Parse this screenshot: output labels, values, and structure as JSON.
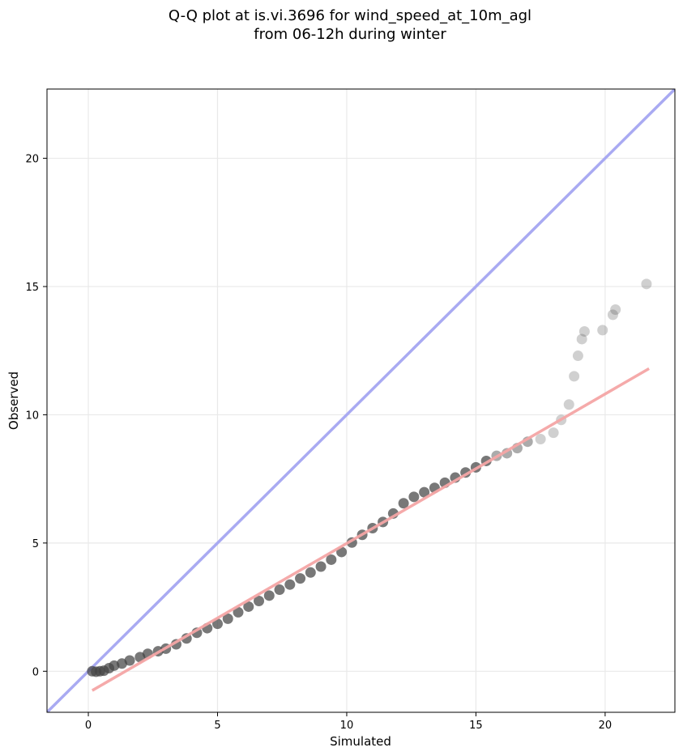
{
  "chart_data": {
    "type": "scatter",
    "title": "Q-Q plot at is.vi.3696 for wind_speed_at_10m_agl",
    "subtitle": "from 06-12h during winter",
    "xlabel": "Simulated",
    "ylabel": "Observed",
    "xlim": [
      -1.6,
      22.7
    ],
    "ylim": [
      -1.6,
      22.7
    ],
    "xticks": [
      0,
      5,
      10,
      15,
      20
    ],
    "yticks": [
      0,
      5,
      10,
      15,
      20
    ],
    "grid": true,
    "reference_line": {
      "from": [
        -1.6,
        -1.6
      ],
      "to": [
        22.7,
        22.7
      ],
      "color": "#a9aaf2"
    },
    "fit_line": {
      "from": [
        0.15,
        -0.75
      ],
      "to": [
        21.7,
        11.8
      ],
      "color": "#f4a5a5"
    },
    "point_color": "#444444",
    "quantiles": [
      [
        0.15,
        0.0
      ],
      [
        0.3,
        -0.02
      ],
      [
        0.45,
        0.0
      ],
      [
        0.6,
        0.02
      ],
      [
        0.8,
        0.12
      ],
      [
        1.0,
        0.22
      ],
      [
        1.3,
        0.3
      ],
      [
        1.6,
        0.42
      ],
      [
        2.0,
        0.55
      ],
      [
        2.3,
        0.68
      ],
      [
        2.7,
        0.78
      ],
      [
        3.0,
        0.88
      ],
      [
        3.4,
        1.05
      ],
      [
        3.8,
        1.28
      ],
      [
        4.2,
        1.5
      ],
      [
        4.6,
        1.68
      ],
      [
        5.0,
        1.85
      ],
      [
        5.4,
        2.05
      ],
      [
        5.8,
        2.3
      ],
      [
        6.2,
        2.52
      ],
      [
        6.6,
        2.74
      ],
      [
        7.0,
        2.95
      ],
      [
        7.4,
        3.18
      ],
      [
        7.8,
        3.38
      ],
      [
        8.2,
        3.62
      ],
      [
        8.6,
        3.85
      ],
      [
        9.0,
        4.08
      ],
      [
        9.4,
        4.35
      ],
      [
        9.8,
        4.65
      ],
      [
        10.2,
        5.02
      ],
      [
        10.6,
        5.32
      ],
      [
        11.0,
        5.58
      ],
      [
        11.4,
        5.82
      ],
      [
        11.8,
        6.15
      ],
      [
        12.2,
        6.55
      ],
      [
        12.6,
        6.8
      ],
      [
        13.0,
        6.98
      ],
      [
        13.4,
        7.15
      ],
      [
        13.8,
        7.35
      ],
      [
        14.2,
        7.55
      ],
      [
        14.6,
        7.75
      ],
      [
        15.0,
        7.95
      ],
      [
        15.4,
        8.2
      ],
      [
        15.8,
        8.4
      ],
      [
        16.2,
        8.5
      ],
      [
        16.6,
        8.7
      ],
      [
        17.0,
        8.95
      ],
      [
        17.5,
        9.05
      ],
      [
        18.0,
        9.3
      ],
      [
        18.3,
        9.8
      ],
      [
        18.6,
        10.4
      ],
      [
        18.8,
        11.5
      ],
      [
        18.95,
        12.3
      ],
      [
        19.1,
        12.95
      ],
      [
        19.2,
        13.25
      ],
      [
        19.9,
        13.3
      ],
      [
        20.3,
        13.9
      ],
      [
        20.4,
        14.1
      ],
      [
        21.6,
        15.1
      ]
    ]
  }
}
